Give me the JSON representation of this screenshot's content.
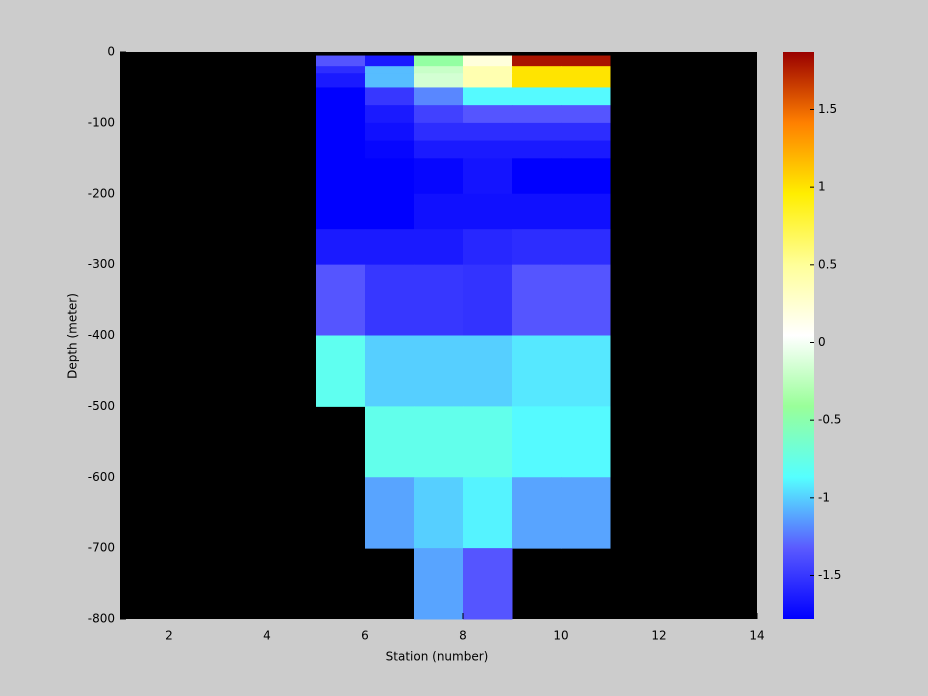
{
  "chart_data": {
    "type": "heatmap",
    "x_label": "Station (number)",
    "y_label": "Depth (meter)",
    "x_edges": [
      5,
      6,
      7,
      8,
      9,
      10,
      11
    ],
    "y_edges": [
      -5,
      -20,
      -30,
      -50,
      -75,
      -100,
      -125,
      -150,
      -200,
      -250,
      -300,
      -400,
      -500,
      -600,
      -700,
      -800
    ],
    "z": [
      [
        -1.35,
        -1.65,
        -0.45,
        0.2,
        1.8,
        1.8
      ],
      [
        -1.55,
        -1.05,
        -0.2,
        0.4,
        1.0,
        1.0
      ],
      [
        -1.65,
        -1.05,
        -0.15,
        0.4,
        1.0,
        1.0
      ],
      [
        -1.78,
        -1.5,
        -1.2,
        -0.88,
        -0.88,
        -0.88
      ],
      [
        -1.78,
        -1.65,
        -1.45,
        -1.35,
        -1.35,
        -1.35
      ],
      [
        -1.78,
        -1.7,
        -1.55,
        -1.55,
        -1.55,
        -1.55
      ],
      [
        -1.78,
        -1.75,
        -1.65,
        -1.65,
        -1.65,
        -1.65
      ],
      [
        -1.78,
        -1.78,
        -1.75,
        -1.68,
        -1.78,
        -1.78
      ],
      [
        -1.78,
        -1.78,
        -1.7,
        -1.7,
        -1.7,
        -1.7
      ],
      [
        -1.65,
        -1.65,
        -1.65,
        -1.58,
        -1.55,
        -1.55
      ],
      [
        -1.35,
        -1.5,
        -1.5,
        -1.52,
        -1.35,
        -1.35
      ],
      [
        -0.8,
        -1.0,
        -1.0,
        -1.0,
        -0.93,
        -0.93
      ],
      [
        null,
        -0.78,
        -0.78,
        -0.78,
        -0.88,
        -0.88
      ],
      [
        null,
        -1.12,
        -1.0,
        -0.9,
        -1.12,
        -1.12
      ],
      [
        null,
        null,
        -1.12,
        -1.35,
        null,
        null
      ]
    ],
    "xlim": [
      1,
      14
    ],
    "xticks": [
      2,
      4,
      6,
      8,
      10,
      12,
      14
    ],
    "ylim": [
      -800,
      0
    ],
    "yticks": [
      0,
      -100,
      -200,
      -300,
      -400,
      -500,
      -600,
      -700,
      -800
    ],
    "clim": [
      -1.78,
      1.87
    ],
    "cticks": [
      -1.5,
      -1,
      -0.5,
      0,
      0.5,
      1,
      1.5
    ],
    "colormap": [
      "#0000ff",
      "#5a5aff",
      "#55ffff",
      "#99ff99",
      "#ffffff",
      "#ffff99",
      "#ffee00",
      "#ff8000",
      "#990000"
    ],
    "missing_color": "#000000"
  }
}
